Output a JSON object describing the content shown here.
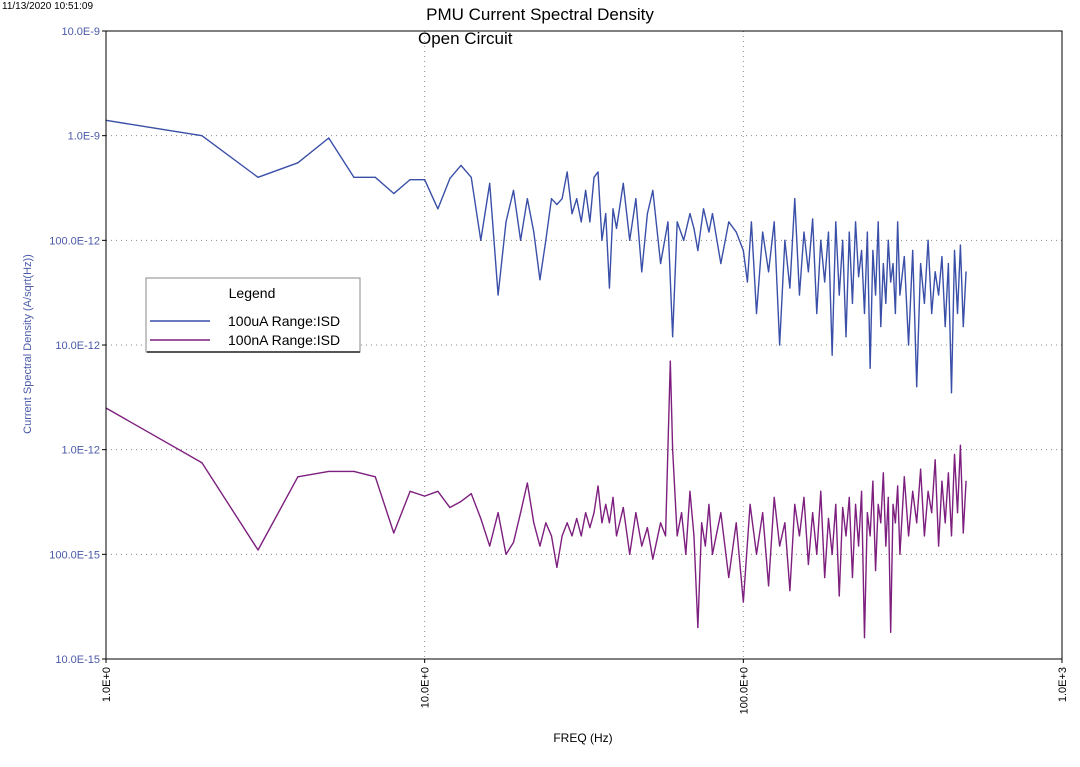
{
  "timestamp": "11/13/2020 10:51:09",
  "colors": {
    "series1": "#3a4fa8",
    "series2": "#7d1f7e",
    "axis_label": "#4a5aa8",
    "grid": "#888888"
  },
  "chart_data": {
    "type": "line",
    "title": "PMU Current Spectral Density",
    "subtitle": "Open Circuit",
    "xlabel": "FREQ (Hz)",
    "ylabel": "Current Spectral Density (A/sqrt(Hz))",
    "xscale": "log",
    "yscale": "log",
    "xlim": [
      1,
      1000
    ],
    "ylim": [
      1e-14,
      1e-08
    ],
    "grid": true,
    "x_ticks": [
      {
        "value": 1,
        "label": "1.0E+0"
      },
      {
        "value": 10,
        "label": "10.0E+0"
      },
      {
        "value": 100,
        "label": "100.0E+0"
      },
      {
        "value": 1000,
        "label": "1.0E+3"
      }
    ],
    "y_ticks": [
      {
        "value": 1e-08,
        "label": "10.0E-9"
      },
      {
        "value": 1e-09,
        "label": "1.0E-9"
      },
      {
        "value": 1e-10,
        "label": "100.0E-12"
      },
      {
        "value": 1e-11,
        "label": "10.0E-12"
      },
      {
        "value": 1e-12,
        "label": "1.0E-12"
      },
      {
        "value": 1e-13,
        "label": "100.0E-15"
      },
      {
        "value": 1e-14,
        "label": "10.0E-15"
      }
    ],
    "legend": {
      "title": "Legend",
      "position": "left-middle"
    },
    "series": [
      {
        "name": "100uA Range:ISD",
        "color": "#3a4fa8",
        "points": [
          [
            1,
            1.4e-09
          ],
          [
            2,
            1e-09
          ],
          [
            3,
            4e-10
          ],
          [
            4,
            5.5e-10
          ],
          [
            5,
            9.5e-10
          ],
          [
            6,
            4e-10
          ],
          [
            7,
            4e-10
          ],
          [
            8,
            2.8e-10
          ],
          [
            9,
            3.8e-10
          ],
          [
            10,
            3.8e-10
          ],
          [
            11,
            2e-10
          ],
          [
            12,
            3.9e-10
          ],
          [
            13,
            5.2e-10
          ],
          [
            14,
            4e-10
          ],
          [
            15,
            1e-10
          ],
          [
            16,
            3.5e-10
          ],
          [
            17,
            3e-11
          ],
          [
            18,
            1.5e-10
          ],
          [
            19,
            3e-10
          ],
          [
            20,
            1e-10
          ],
          [
            21,
            2.5e-10
          ],
          [
            22,
            1.2e-10
          ],
          [
            23,
            4.2e-11
          ],
          [
            24,
            1e-10
          ],
          [
            25,
            2.5e-10
          ],
          [
            26,
            2.2e-10
          ],
          [
            27,
            2.5e-10
          ],
          [
            28,
            4.5e-10
          ],
          [
            29,
            1.8e-10
          ],
          [
            30,
            2.5e-10
          ],
          [
            31,
            1.5e-10
          ],
          [
            32,
            3e-10
          ],
          [
            33,
            1.5e-10
          ],
          [
            34,
            4e-10
          ],
          [
            35,
            4.5e-10
          ],
          [
            36,
            1e-10
          ],
          [
            37,
            1.8e-10
          ],
          [
            38,
            3.5e-11
          ],
          [
            39,
            2e-10
          ],
          [
            40,
            1.3e-10
          ],
          [
            42,
            3.5e-10
          ],
          [
            44,
            1e-10
          ],
          [
            46,
            2.5e-10
          ],
          [
            48,
            5e-11
          ],
          [
            50,
            1.8e-10
          ],
          [
            52,
            3e-10
          ],
          [
            55,
            6e-11
          ],
          [
            58,
            1.5e-10
          ],
          [
            60,
            1.2e-11
          ],
          [
            62,
            1.5e-10
          ],
          [
            65,
            1e-10
          ],
          [
            68,
            1.8e-10
          ],
          [
            70,
            1.3e-10
          ],
          [
            72,
            8e-11
          ],
          [
            75,
            2e-10
          ],
          [
            78,
            1.2e-10
          ],
          [
            80,
            1.8e-10
          ],
          [
            85,
            6e-11
          ],
          [
            90,
            1.5e-10
          ],
          [
            95,
            1.2e-10
          ],
          [
            100,
            8e-11
          ],
          [
            103,
            4e-11
          ],
          [
            106,
            1.5e-10
          ],
          [
            110,
            2e-11
          ],
          [
            115,
            1.2e-10
          ],
          [
            120,
            5e-11
          ],
          [
            125,
            1.5e-10
          ],
          [
            130,
            1e-11
          ],
          [
            135,
            1e-10
          ],
          [
            140,
            3.5e-11
          ],
          [
            145,
            2.5e-10
          ],
          [
            150,
            3e-11
          ],
          [
            155,
            1.2e-10
          ],
          [
            160,
            5e-11
          ],
          [
            165,
            1.6e-10
          ],
          [
            170,
            2e-11
          ],
          [
            175,
            1e-10
          ],
          [
            180,
            4e-11
          ],
          [
            185,
            1.2e-10
          ],
          [
            190,
            8e-12
          ],
          [
            195,
            1.5e-10
          ],
          [
            200,
            3e-11
          ],
          [
            205,
            1e-10
          ],
          [
            210,
            1.2e-11
          ],
          [
            215,
            1.2e-10
          ],
          [
            220,
            2.5e-11
          ],
          [
            225,
            1.5e-10
          ],
          [
            230,
            4.5e-11
          ],
          [
            235,
            8e-11
          ],
          [
            240,
            2e-11
          ],
          [
            245,
            1.2e-10
          ],
          [
            250,
            6e-12
          ],
          [
            255,
            8e-11
          ],
          [
            260,
            3e-11
          ],
          [
            265,
            1.5e-10
          ],
          [
            270,
            1.5e-11
          ],
          [
            275,
            6e-11
          ],
          [
            280,
            2.5e-11
          ],
          [
            285,
            1e-10
          ],
          [
            290,
            4e-11
          ],
          [
            295,
            6e-11
          ],
          [
            300,
            2e-11
          ],
          [
            305,
            1.5e-10
          ],
          [
            310,
            3e-11
          ],
          [
            320,
            7e-11
          ],
          [
            330,
            1e-11
          ],
          [
            340,
            8e-11
          ],
          [
            350,
            4e-12
          ],
          [
            360,
            6e-11
          ],
          [
            370,
            2.5e-11
          ],
          [
            380,
            1e-10
          ],
          [
            390,
            2e-11
          ],
          [
            400,
            5e-11
          ],
          [
            410,
            3e-11
          ],
          [
            420,
            7e-11
          ],
          [
            430,
            1.5e-11
          ],
          [
            440,
            6e-11
          ],
          [
            450,
            3.5e-12
          ],
          [
            460,
            8e-11
          ],
          [
            470,
            2e-11
          ],
          [
            480,
            9e-11
          ],
          [
            490,
            1.5e-11
          ],
          [
            500,
            5e-11
          ]
        ]
      },
      {
        "name": "100nA Range:ISD",
        "color": "#7d1f7e",
        "points": [
          [
            1,
            2.5e-12
          ],
          [
            2,
            7.5e-13
          ],
          [
            3,
            1.1e-13
          ],
          [
            4,
            5.5e-13
          ],
          [
            5,
            6.2e-13
          ],
          [
            6,
            6.2e-13
          ],
          [
            7,
            5.5e-13
          ],
          [
            8,
            1.6e-13
          ],
          [
            9,
            4e-13
          ],
          [
            10,
            3.6e-13
          ],
          [
            11,
            4e-13
          ],
          [
            12,
            2.8e-13
          ],
          [
            13,
            3.2e-13
          ],
          [
            14,
            3.8e-13
          ],
          [
            15,
            2.2e-13
          ],
          [
            16,
            1.2e-13
          ],
          [
            17,
            2.5e-13
          ],
          [
            18,
            1e-13
          ],
          [
            19,
            1.3e-13
          ],
          [
            20,
            2.5e-13
          ],
          [
            21,
            4.8e-13
          ],
          [
            22,
            2e-13
          ],
          [
            23,
            1.2e-13
          ],
          [
            24,
            2e-13
          ],
          [
            25,
            1.5e-13
          ],
          [
            26,
            7.5e-14
          ],
          [
            27,
            1.5e-13
          ],
          [
            28,
            2e-13
          ],
          [
            29,
            1.5e-13
          ],
          [
            30,
            2.2e-13
          ],
          [
            31,
            1.5e-13
          ],
          [
            32,
            2.5e-13
          ],
          [
            33,
            1.8e-13
          ],
          [
            34,
            2.5e-13
          ],
          [
            35,
            4.5e-13
          ],
          [
            36,
            2e-13
          ],
          [
            37,
            3e-13
          ],
          [
            38,
            2e-13
          ],
          [
            39,
            3.5e-13
          ],
          [
            40,
            1.5e-13
          ],
          [
            42,
            2.8e-13
          ],
          [
            44,
            1e-13
          ],
          [
            46,
            2.5e-13
          ],
          [
            48,
            1.2e-13
          ],
          [
            50,
            1.8e-13
          ],
          [
            52,
            9e-14
          ],
          [
            55,
            2e-13
          ],
          [
            57,
            1.5e-13
          ],
          [
            59,
            7e-12
          ],
          [
            60,
            1e-12
          ],
          [
            62,
            1.5e-13
          ],
          [
            64,
            2.5e-13
          ],
          [
            66,
            1e-13
          ],
          [
            68,
            4e-13
          ],
          [
            70,
            1.5e-13
          ],
          [
            72,
            2e-14
          ],
          [
            74,
            2e-13
          ],
          [
            76,
            1.2e-13
          ],
          [
            78,
            3e-13
          ],
          [
            80,
            1e-13
          ],
          [
            85,
            2.5e-13
          ],
          [
            90,
            6e-14
          ],
          [
            95,
            2e-13
          ],
          [
            100,
            3.5e-14
          ],
          [
            105,
            3e-13
          ],
          [
            110,
            1e-13
          ],
          [
            115,
            2.5e-13
          ],
          [
            120,
            5e-14
          ],
          [
            125,
            3.5e-13
          ],
          [
            130,
            1.2e-13
          ],
          [
            135,
            2e-13
          ],
          [
            140,
            4.5e-14
          ],
          [
            145,
            3e-13
          ],
          [
            150,
            1.5e-13
          ],
          [
            155,
            3.5e-13
          ],
          [
            160,
            8e-14
          ],
          [
            165,
            2.5e-13
          ],
          [
            170,
            1e-13
          ],
          [
            175,
            4e-13
          ],
          [
            180,
            6e-14
          ],
          [
            185,
            2.2e-13
          ],
          [
            190,
            1e-13
          ],
          [
            195,
            3e-13
          ],
          [
            200,
            4e-14
          ],
          [
            205,
            2.8e-13
          ],
          [
            210,
            1.5e-13
          ],
          [
            215,
            3.5e-13
          ],
          [
            220,
            6e-14
          ],
          [
            225,
            3e-13
          ],
          [
            230,
            1.2e-13
          ],
          [
            235,
            4e-13
          ],
          [
            240,
            1.6e-14
          ],
          [
            245,
            2.5e-13
          ],
          [
            250,
            1.5e-13
          ],
          [
            255,
            5e-13
          ],
          [
            260,
            7e-14
          ],
          [
            265,
            3e-13
          ],
          [
            270,
            2e-13
          ],
          [
            275,
            6e-13
          ],
          [
            280,
            1.2e-13
          ],
          [
            285,
            3.5e-13
          ],
          [
            290,
            1.8e-14
          ],
          [
            295,
            3e-13
          ],
          [
            300,
            2e-13
          ],
          [
            305,
            4.5e-13
          ],
          [
            310,
            1e-13
          ],
          [
            320,
            5.5e-13
          ],
          [
            330,
            1.5e-13
          ],
          [
            340,
            4e-13
          ],
          [
            350,
            2e-13
          ],
          [
            360,
            6.5e-13
          ],
          [
            370,
            1.5e-13
          ],
          [
            380,
            4e-13
          ],
          [
            390,
            2.5e-13
          ],
          [
            400,
            8e-13
          ],
          [
            410,
            1.2e-13
          ],
          [
            420,
            5e-13
          ],
          [
            430,
            2e-13
          ],
          [
            440,
            6e-13
          ],
          [
            450,
            1.5e-13
          ],
          [
            460,
            9e-13
          ],
          [
            470,
            2.5e-13
          ],
          [
            480,
            1.1e-12
          ],
          [
            490,
            1.6e-13
          ],
          [
            500,
            5e-13
          ]
        ]
      }
    ]
  }
}
